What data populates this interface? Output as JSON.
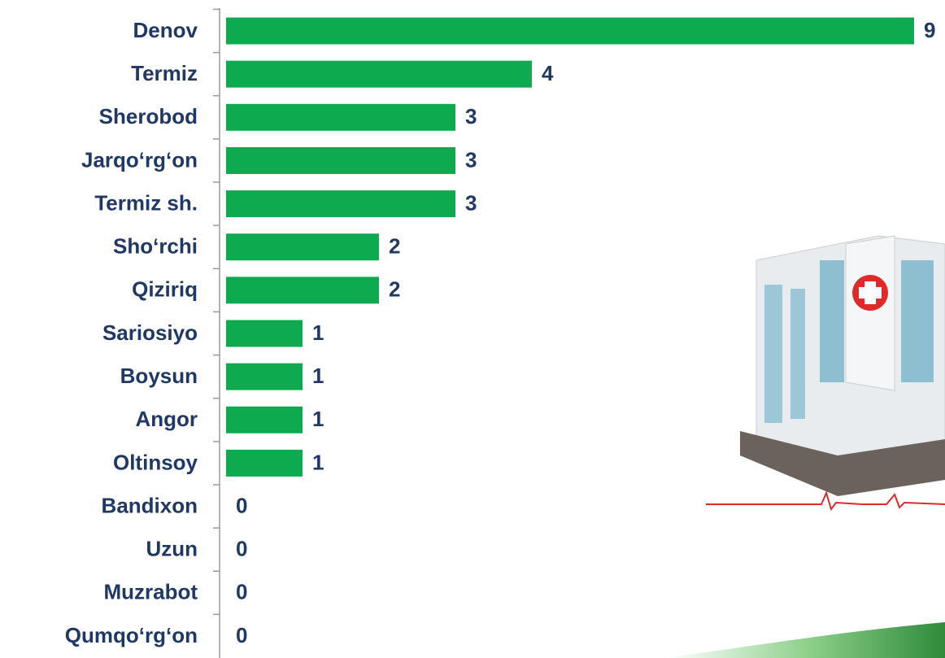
{
  "chart_data": {
    "type": "bar",
    "orientation": "horizontal",
    "categories": [
      "Denov",
      "Termiz",
      "Sherobod",
      "Jarqo‘rg‘on",
      "Termiz sh.",
      "Sho‘rchi",
      "Qiziriq",
      "Sariosiyo",
      "Boysun",
      "Angor",
      "Oltinsoy",
      "Bandixon",
      "Uzun",
      "Muzrabot",
      "Qumqo‘rg‘on"
    ],
    "values": [
      9,
      4,
      3,
      3,
      3,
      2,
      2,
      1,
      1,
      1,
      1,
      0,
      0,
      0,
      0
    ],
    "color": "#0daa4f",
    "xlim": [
      0,
      9
    ]
  }
}
